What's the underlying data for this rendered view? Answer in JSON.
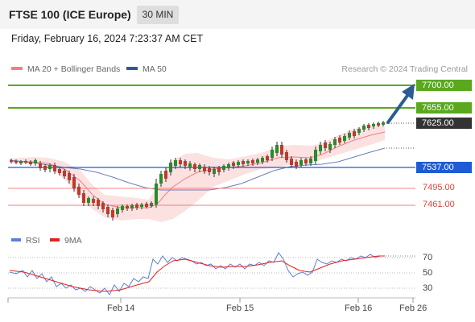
{
  "header": {
    "title": "FTSE 100 (ICE Europe)",
    "timeframe": "30 MIN"
  },
  "timestamp": "Friday, February 16, 2024 7:23:37 AM CET",
  "legend": {
    "bollinger": {
      "label": "MA 20 + Bollinger Bands",
      "color": "#f08080"
    },
    "ma50": {
      "label": "MA 50",
      "color": "#2d5b94"
    }
  },
  "credit": "Research © 2024 Trading Central",
  "price_levels": {
    "r2": "7700.00",
    "r1": "7655.00",
    "last": "7625.00",
    "pivot": "7537.00",
    "s1": "7495.00",
    "s2": "7461.00"
  },
  "rsi_legend": {
    "rsi": {
      "label": "RSI",
      "color": "#5b7fd6"
    },
    "ma9": {
      "label": "9MA",
      "color": "#e32020"
    }
  },
  "rsi_ticks": [
    "70",
    "50",
    "30"
  ],
  "x_labels": [
    "Feb 14",
    "Feb 15",
    "Feb 16",
    "Feb 26"
  ],
  "colors": {
    "resistance": "#5aa81e",
    "pivot": "#1e5bd6",
    "support": "#f08080",
    "last": "#333333",
    "arrow": "#2d5b94",
    "candle_up": "#2a8a2a",
    "candle_down": "#c0392b"
  }
}
